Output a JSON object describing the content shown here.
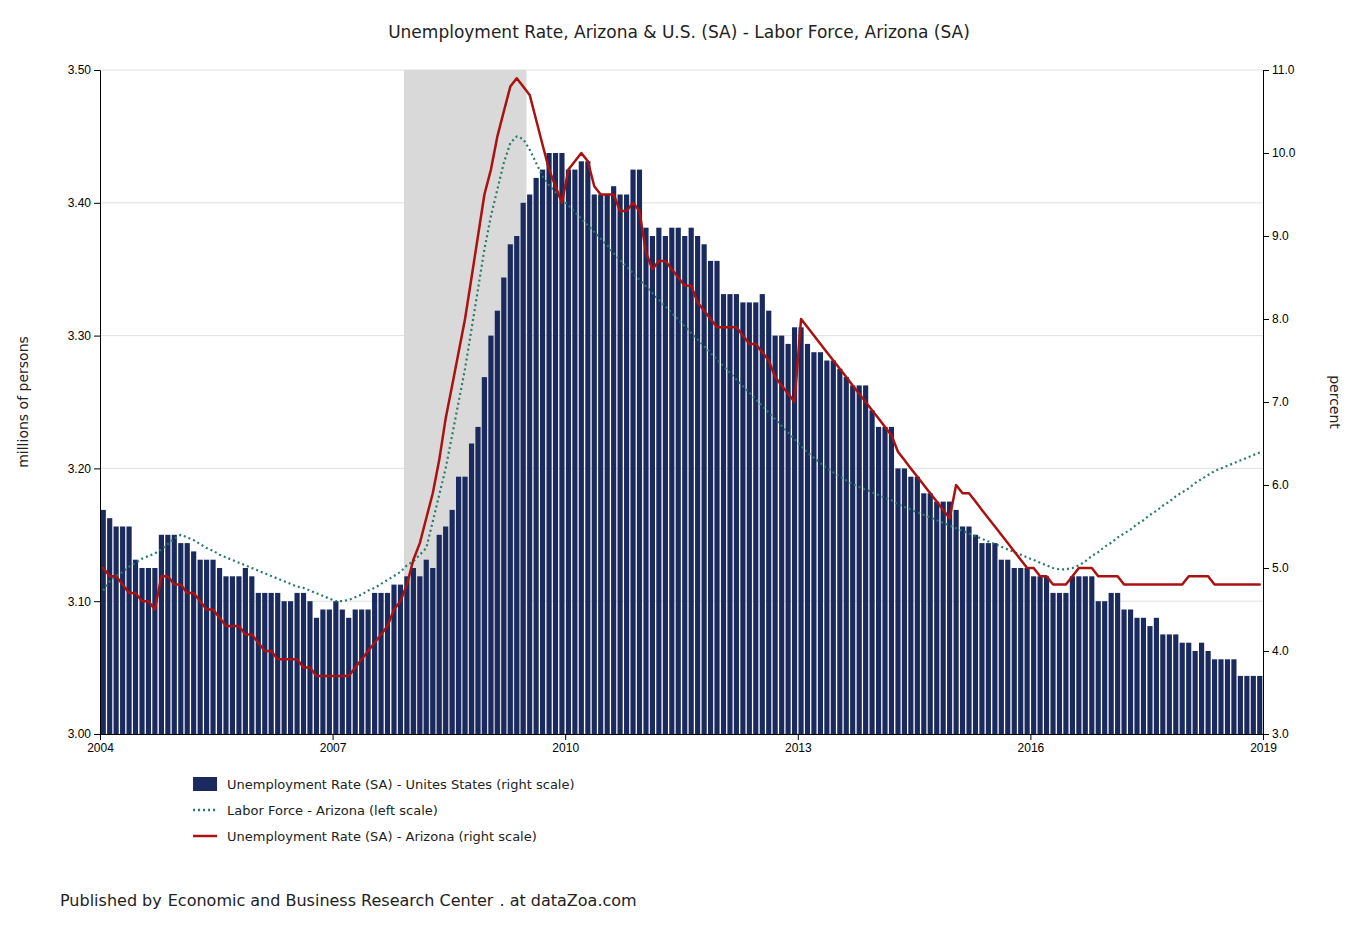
{
  "chart_data": {
    "type": "combo",
    "title": "Unemployment Rate, Arizona & U.S. (SA) - Labor Force, Arizona (SA)",
    "ylabel": "millions of persons",
    "y2label": "percent",
    "xlim": [
      2004.0,
      2019.0
    ],
    "xticks": [
      2004,
      2007,
      2010,
      2013,
      2016,
      2019
    ],
    "ylim": [
      3.0,
      3.5
    ],
    "yticks": [
      {
        "value": 3.0,
        "label": "3.00"
      },
      {
        "value": 3.1,
        "label": "3.10"
      },
      {
        "value": 3.2,
        "label": "3.20"
      },
      {
        "value": 3.3,
        "label": "3.30"
      },
      {
        "value": 3.4,
        "label": "3.40"
      },
      {
        "value": 3.5,
        "label": "3.50"
      }
    ],
    "y2lim": [
      3.0,
      11.0
    ],
    "y2ticks": [
      {
        "value": 3.0,
        "label": "3.0"
      },
      {
        "value": 4.0,
        "label": "4.0"
      },
      {
        "value": 5.0,
        "label": "5.0"
      },
      {
        "value": 6.0,
        "label": "6.0"
      },
      {
        "value": 7.0,
        "label": "7.0"
      },
      {
        "value": 8.0,
        "label": "8.0"
      },
      {
        "value": 9.0,
        "label": "9.0"
      },
      {
        "value": 10.0,
        "label": "10.0"
      },
      {
        "value": 11.0,
        "label": "11.0"
      }
    ],
    "grid": "y",
    "legend": "bottom",
    "shaded_ranges": [
      [
        2007.92,
        2009.5
      ]
    ],
    "annotations": [
      "Published by",
      "Economic and Business Research Center",
      ". at dataZoa.com"
    ],
    "x": [
      2004.042,
      2004.125,
      2004.208,
      2004.292,
      2004.375,
      2004.458,
      2004.542,
      2004.625,
      2004.708,
      2004.792,
      2004.875,
      2004.958,
      2005.042,
      2005.125,
      2005.208,
      2005.292,
      2005.375,
      2005.458,
      2005.542,
      2005.625,
      2005.708,
      2005.792,
      2005.875,
      2005.958,
      2006.042,
      2006.125,
      2006.208,
      2006.292,
      2006.375,
      2006.458,
      2006.542,
      2006.625,
      2006.708,
      2006.792,
      2006.875,
      2006.958,
      2007.042,
      2007.125,
      2007.208,
      2007.292,
      2007.375,
      2007.458,
      2007.542,
      2007.625,
      2007.708,
      2007.792,
      2007.875,
      2007.958,
      2008.042,
      2008.125,
      2008.208,
      2008.292,
      2008.375,
      2008.458,
      2008.542,
      2008.625,
      2008.708,
      2008.792,
      2008.875,
      2008.958,
      2009.042,
      2009.125,
      2009.208,
      2009.292,
      2009.375,
      2009.458,
      2009.542,
      2009.625,
      2009.708,
      2009.792,
      2009.875,
      2009.958,
      2010.042,
      2010.125,
      2010.208,
      2010.292,
      2010.375,
      2010.458,
      2010.542,
      2010.625,
      2010.708,
      2010.792,
      2010.875,
      2010.958,
      2011.042,
      2011.125,
      2011.208,
      2011.292,
      2011.375,
      2011.458,
      2011.542,
      2011.625,
      2011.708,
      2011.792,
      2011.875,
      2011.958,
      2012.042,
      2012.125,
      2012.208,
      2012.292,
      2012.375,
      2012.458,
      2012.542,
      2012.625,
      2012.708,
      2012.792,
      2012.875,
      2012.958,
      2013.042,
      2013.125,
      2013.208,
      2013.292,
      2013.375,
      2013.458,
      2013.542,
      2013.625,
      2013.708,
      2013.792,
      2013.875,
      2013.958,
      2014.042,
      2014.125,
      2014.208,
      2014.292,
      2014.375,
      2014.458,
      2014.542,
      2014.625,
      2014.708,
      2014.792,
      2014.875,
      2014.958,
      2015.042,
      2015.125,
      2015.208,
      2015.292,
      2015.375,
      2015.458,
      2015.542,
      2015.625,
      2015.708,
      2015.792,
      2015.875,
      2015.958,
      2016.042,
      2016.125,
      2016.208,
      2016.292,
      2016.375,
      2016.458,
      2016.542,
      2016.625,
      2016.708,
      2016.792,
      2016.875,
      2016.958,
      2017.042,
      2017.125,
      2017.208,
      2017.292,
      2017.375,
      2017.458,
      2017.542,
      2017.625,
      2017.708,
      2017.792,
      2017.875,
      2017.958,
      2018.042,
      2018.125,
      2018.208,
      2018.292,
      2018.375,
      2018.458,
      2018.542,
      2018.625,
      2018.708,
      2018.792,
      2018.875,
      2018.958
    ],
    "series": [
      {
        "name": "Unemployment Rate (SA) - Unites States (right scale)",
        "type": "bar",
        "axis": "y2",
        "color": "#1a2a5e",
        "values": [
          5.7,
          5.6,
          5.5,
          5.5,
          5.5,
          5.1,
          5.0,
          5.0,
          5.0,
          5.4,
          5.4,
          5.4,
          5.3,
          5.3,
          5.2,
          5.1,
          5.1,
          5.1,
          5.0,
          4.9,
          4.9,
          4.9,
          5.0,
          4.9,
          4.7,
          4.7,
          4.7,
          4.7,
          4.6,
          4.6,
          4.7,
          4.7,
          4.6,
          4.4,
          4.5,
          4.5,
          4.6,
          4.5,
          4.4,
          4.5,
          4.5,
          4.5,
          4.7,
          4.7,
          4.7,
          4.8,
          4.8,
          4.9,
          5.0,
          4.9,
          5.1,
          5.0,
          5.4,
          5.5,
          5.7,
          6.1,
          6.1,
          6.5,
          6.7,
          7.3,
          7.8,
          8.1,
          8.5,
          8.9,
          9.0,
          9.4,
          9.5,
          9.7,
          9.8,
          10.0,
          10.0,
          10.0,
          9.8,
          9.8,
          9.9,
          9.9,
          9.5,
          9.5,
          9.5,
          9.6,
          9.5,
          9.5,
          9.8,
          9.8,
          9.1,
          9.0,
          9.1,
          9.0,
          9.1,
          9.1,
          9.0,
          9.1,
          9.0,
          8.9,
          8.7,
          8.7,
          8.3,
          8.3,
          8.3,
          8.2,
          8.2,
          8.2,
          8.3,
          8.1,
          7.8,
          7.8,
          7.7,
          7.9,
          7.9,
          7.7,
          7.6,
          7.6,
          7.5,
          7.5,
          7.4,
          7.3,
          7.2,
          7.2,
          7.2,
          6.9,
          6.7,
          6.7,
          6.7,
          6.2,
          6.2,
          6.1,
          6.1,
          5.9,
          5.9,
          5.8,
          5.8,
          5.8,
          5.7,
          5.5,
          5.5,
          5.4,
          5.3,
          5.3,
          5.3,
          5.1,
          5.1,
          5.0,
          5.0,
          5.0,
          4.9,
          4.9,
          4.9,
          4.7,
          4.7,
          4.7,
          4.9,
          4.9,
          4.9,
          4.9,
          4.6,
          4.6,
          4.7,
          4.7,
          4.5,
          4.5,
          4.4,
          4.4,
          4.3,
          4.4,
          4.2,
          4.2,
          4.2,
          4.1,
          4.1,
          4.0,
          4.1,
          4.0,
          3.9,
          3.9,
          3.9,
          3.9,
          3.7,
          3.7,
          3.7,
          3.7
        ]
      },
      {
        "name": "Labor Force - Arizona (left scale)",
        "type": "line",
        "axis": "y",
        "color": "#2a7a6a",
        "line_style": "dotted",
        "values": [
          3.108,
          3.115,
          3.119,
          3.122,
          3.126,
          3.129,
          3.132,
          3.134,
          3.136,
          3.139,
          3.143,
          3.147,
          3.15,
          3.148,
          3.146,
          3.143,
          3.14,
          3.138,
          3.135,
          3.133,
          3.131,
          3.129,
          3.127,
          3.125,
          3.123,
          3.121,
          3.119,
          3.117,
          3.115,
          3.113,
          3.111,
          3.11,
          3.108,
          3.106,
          3.104,
          3.102,
          3.1,
          3.1,
          3.101,
          3.103,
          3.105,
          3.108,
          3.11,
          3.113,
          3.116,
          3.119,
          3.122,
          3.127,
          3.13,
          3.135,
          3.14,
          3.16,
          3.18,
          3.2,
          3.225,
          3.25,
          3.275,
          3.305,
          3.335,
          3.365,
          3.39,
          3.41,
          3.43,
          3.445,
          3.45,
          3.448,
          3.44,
          3.43,
          3.42,
          3.413,
          3.408,
          3.403,
          3.398,
          3.393,
          3.388,
          3.383,
          3.378,
          3.373,
          3.368,
          3.362,
          3.357,
          3.352,
          3.347,
          3.342,
          3.337,
          3.332,
          3.327,
          3.322,
          3.317,
          3.312,
          3.307,
          3.302,
          3.297,
          3.292,
          3.287,
          3.282,
          3.277,
          3.272,
          3.267,
          3.262,
          3.257,
          3.252,
          3.247,
          3.242,
          3.237,
          3.232,
          3.227,
          3.222,
          3.217,
          3.212,
          3.208,
          3.204,
          3.2,
          3.197,
          3.194,
          3.191,
          3.188,
          3.186,
          3.184,
          3.182,
          3.18,
          3.178,
          3.176,
          3.173,
          3.171,
          3.169,
          3.167,
          3.165,
          3.163,
          3.161,
          3.159,
          3.157,
          3.155,
          3.153,
          3.151,
          3.149,
          3.147,
          3.145,
          3.143,
          3.141,
          3.139,
          3.137,
          3.135,
          3.133,
          3.131,
          3.129,
          3.127,
          3.125,
          3.124,
          3.124,
          3.125,
          3.127,
          3.13,
          3.134,
          3.137,
          3.141,
          3.144,
          3.148,
          3.151,
          3.154,
          3.158,
          3.161,
          3.165,
          3.168,
          3.172,
          3.175,
          3.179,
          3.182,
          3.185,
          3.189,
          3.192,
          3.195,
          3.198,
          3.2,
          3.202,
          3.204,
          3.206,
          3.208,
          3.21,
          3.212
        ]
      },
      {
        "name": "Unemployment Rate (SA) - Arizona (right scale)",
        "type": "line",
        "axis": "y2",
        "color": "#aa1111",
        "line_style": "solid",
        "values": [
          5.0,
          4.9,
          4.9,
          4.8,
          4.7,
          4.7,
          4.6,
          4.6,
          4.5,
          4.9,
          4.9,
          4.8,
          4.8,
          4.7,
          4.7,
          4.6,
          4.5,
          4.5,
          4.4,
          4.3,
          4.3,
          4.3,
          4.2,
          4.2,
          4.1,
          4.0,
          4.0,
          3.9,
          3.9,
          3.9,
          3.9,
          3.8,
          3.8,
          3.7,
          3.7,
          3.7,
          3.7,
          3.7,
          3.7,
          3.8,
          3.9,
          4.0,
          4.1,
          4.2,
          4.3,
          4.5,
          4.6,
          4.8,
          5.1,
          5.3,
          5.6,
          5.9,
          6.3,
          6.8,
          7.2,
          7.6,
          8.0,
          8.5,
          9.0,
          9.5,
          9.8,
          10.2,
          10.5,
          10.8,
          10.9,
          10.8,
          10.7,
          10.4,
          10.1,
          9.8,
          9.6,
          9.4,
          9.8,
          9.9,
          10.0,
          9.9,
          9.6,
          9.5,
          9.5,
          9.5,
          9.3,
          9.3,
          9.4,
          9.3,
          8.8,
          8.6,
          8.7,
          8.7,
          8.6,
          8.5,
          8.4,
          8.4,
          8.2,
          8.1,
          8.0,
          7.9,
          7.9,
          7.9,
          7.9,
          7.8,
          7.7,
          7.7,
          7.6,
          7.5,
          7.3,
          7.2,
          7.1,
          7.0,
          8.0,
          7.9,
          7.8,
          7.7,
          7.6,
          7.5,
          7.4,
          7.3,
          7.2,
          7.1,
          7.0,
          6.9,
          6.8,
          6.7,
          6.6,
          6.4,
          6.3,
          6.2,
          6.1,
          6.0,
          5.9,
          5.8,
          5.7,
          5.6,
          6.0,
          5.9,
          5.9,
          5.8,
          5.7,
          5.6,
          5.5,
          5.4,
          5.3,
          5.2,
          5.1,
          5.0,
          5.0,
          4.9,
          4.9,
          4.8,
          4.8,
          4.8,
          4.9,
          5.0,
          5.0,
          5.0,
          4.9,
          4.9,
          4.9,
          4.9,
          4.8,
          4.8,
          4.8,
          4.8,
          4.8,
          4.8,
          4.8,
          4.8,
          4.8,
          4.8,
          4.9,
          4.9,
          4.9,
          4.9,
          4.8,
          4.8,
          4.8,
          4.8,
          4.8,
          4.8,
          4.8,
          4.8
        ]
      }
    ]
  }
}
